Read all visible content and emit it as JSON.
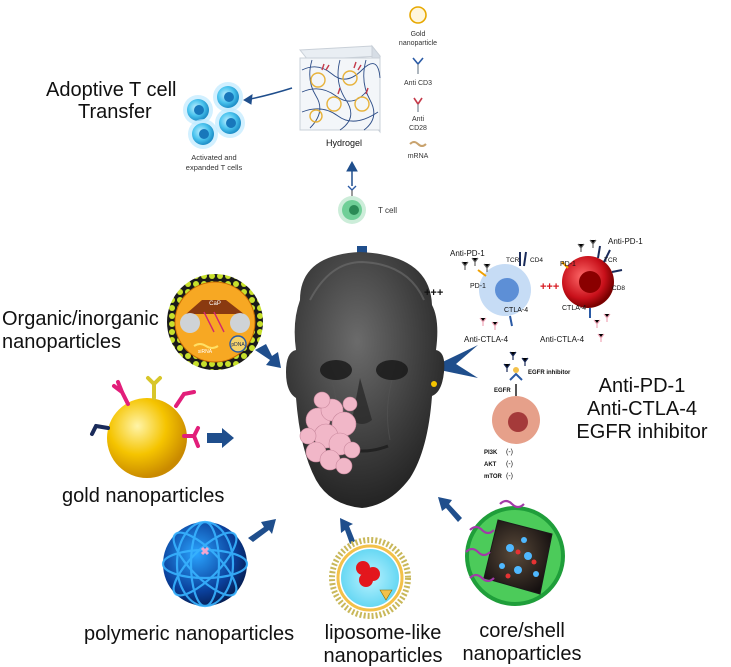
{
  "labels": {
    "adoptive": [
      "Adoptive T cell",
      "Transfer"
    ],
    "hydrogel": "Hydrogel",
    "activated": [
      "Activated and",
      "expanded T cells"
    ],
    "tcell": "T cell",
    "legend_gold": [
      "Gold",
      "nanoparticle"
    ],
    "legend_cd3": "Anti CD3",
    "legend_cd28": [
      "Anti",
      "CD28"
    ],
    "legend_mrna": "mRNA",
    "organic": [
      "Organic/inorganic",
      "nanoparticles"
    ],
    "gold": "gold nanoparticles",
    "polymeric": "polymeric nanoparticles",
    "liposome": [
      "liposome-like",
      "nanoparticles"
    ],
    "coreshell": [
      "core/shell",
      "nanoparticles"
    ],
    "therapies": [
      "Anti-PD-1",
      "Anti-CTLA-4",
      "EGFR inhibitor"
    ],
    "cap": "CaP",
    "sirna": "siRNA",
    "pdna": "pDNA",
    "antipd1_left": "Anti-PD-1",
    "antipd1_right": "Anti-PD-1",
    "tcr_left": "TCR",
    "cd4": "CD4",
    "pd1_left": "PD-1",
    "ctla4_left": "CTLA-4",
    "anticla4_left": "Anti-CTLA-4",
    "pd1_right": "PD-1",
    "tcr_right": "TCR",
    "cd8": "CD8",
    "ctla4_right": "CTLA-4",
    "anticla4_right": "Anti-CTLA-4",
    "plus_black": "+++",
    "plus_red": "+++",
    "egfr_inhibitor": "EGFR inhibitor",
    "egfr": "EGFR",
    "pi3k": "PI3K",
    "akt": "AKT",
    "mtor": "mTOR",
    "minus": "(-)"
  },
  "colors": {
    "arrow": "#1f4e8c",
    "face": "#3f3f3f",
    "tumor": "#f1b7c8",
    "gold": "#f5c400",
    "tcell_blue": "#49c3ee",
    "cell_red": "#d71920",
    "cell_lightblue": "#a9c9f0",
    "polymer": "#1d6fd1",
    "coreshell_green": "#1f9e3a"
  }
}
